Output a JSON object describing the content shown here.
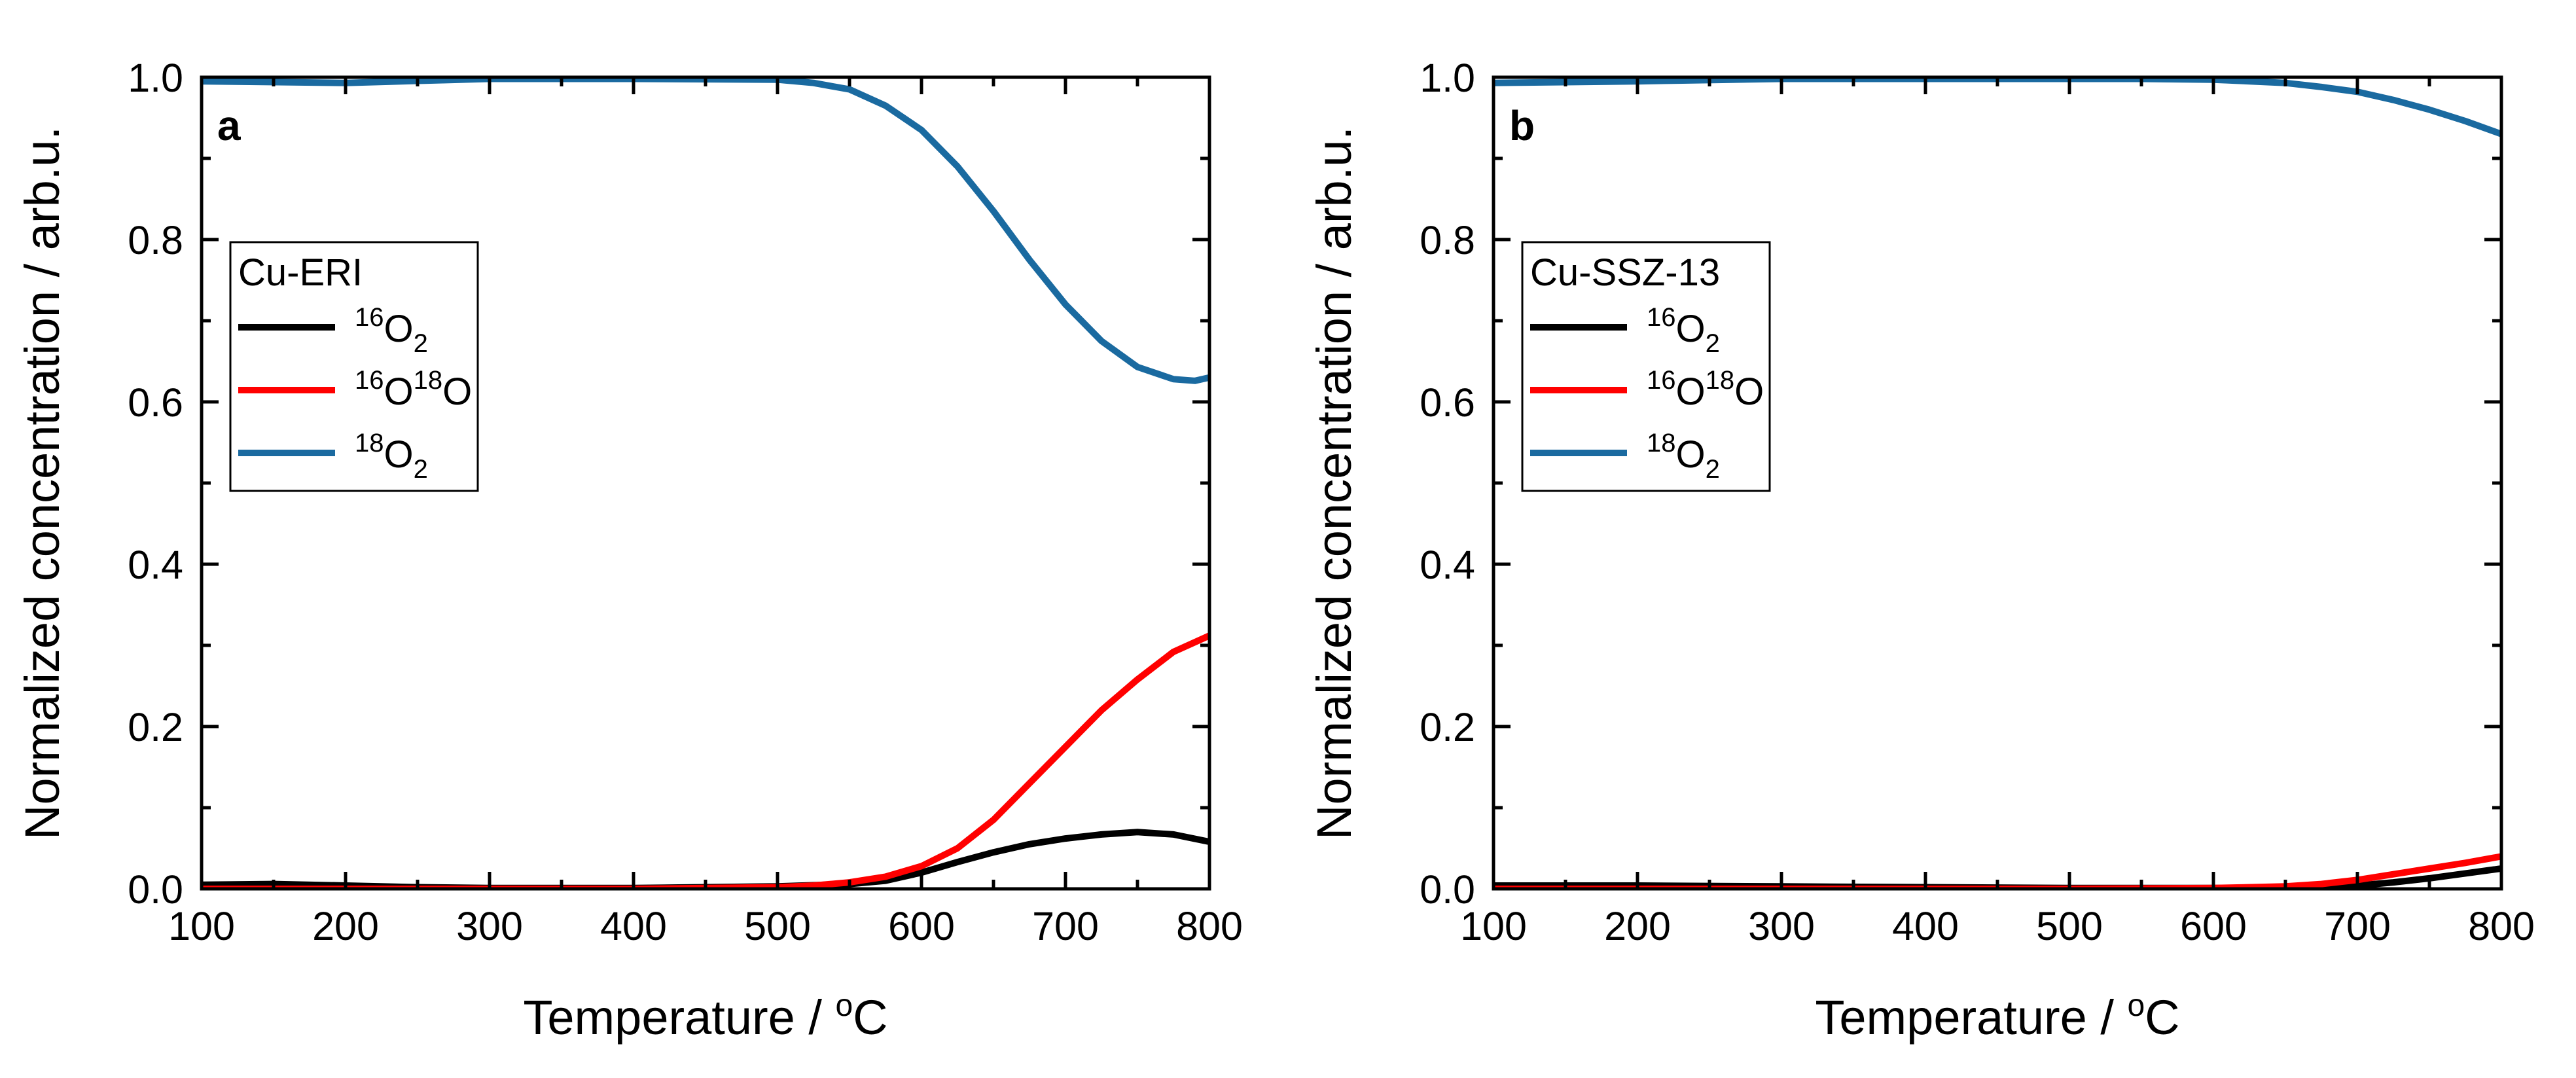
{
  "chart_data": [
    {
      "type": "line",
      "panel_label": "a",
      "xlabel": "Temperature / °C",
      "xlabel_parts": [
        "Temperature / ",
        "o",
        "C"
      ],
      "ylabel": "Normalized concentration / arb.u.",
      "xlim": [
        100,
        800
      ],
      "ylim": [
        0,
        1.0
      ],
      "xticks": [
        "100",
        "200",
        "300",
        "400",
        "500",
        "600",
        "700",
        "800"
      ],
      "yticks": [
        "0.0",
        "0.2",
        "0.4",
        "0.6",
        "0.8",
        "1.0"
      ],
      "legend": {
        "title": "Cu-ERI",
        "placement": "upper-left",
        "entries": [
          {
            "sup": "16",
            "base": "O",
            "sub": "2",
            "sup2": "",
            "tail": ""
          },
          {
            "sup": "16",
            "base": "O",
            "sub": "",
            "sup2": "18",
            "tail": "O"
          },
          {
            "sup": "18",
            "base": "O",
            "sub": "2",
            "sup2": "",
            "tail": ""
          }
        ]
      },
      "series": [
        {
          "name": "16O2",
          "color": "#000000",
          "x": [
            100,
            150,
            200,
            250,
            300,
            350,
            400,
            450,
            500,
            550,
            575,
            600,
            625,
            650,
            675,
            700,
            725,
            750,
            775,
            800
          ],
          "y": [
            0.005,
            0.006,
            0.004,
            0.002,
            0.001,
            0.001,
            0.001,
            0.002,
            0.003,
            0.006,
            0.01,
            0.02,
            0.033,
            0.045,
            0.055,
            0.062,
            0.067,
            0.07,
            0.067,
            0.058
          ]
        },
        {
          "name": "16O18O",
          "color": "#ff0000",
          "x": [
            100,
            200,
            300,
            400,
            500,
            525,
            550,
            575,
            600,
            625,
            650,
            675,
            700,
            725,
            750,
            775,
            800
          ],
          "y": [
            0.0,
            0.0,
            0.0,
            0.0,
            0.002,
            0.004,
            0.008,
            0.015,
            0.028,
            0.05,
            0.085,
            0.13,
            0.175,
            0.22,
            0.258,
            0.292,
            0.312
          ]
        },
        {
          "name": "18O2",
          "color": "#1a6aa0",
          "x": [
            100,
            200,
            300,
            400,
            500,
            525,
            550,
            575,
            600,
            625,
            650,
            675,
            700,
            725,
            750,
            775,
            790,
            800
          ],
          "y": [
            0.995,
            0.993,
            0.998,
            0.998,
            0.997,
            0.993,
            0.985,
            0.965,
            0.935,
            0.89,
            0.835,
            0.775,
            0.72,
            0.675,
            0.643,
            0.628,
            0.626,
            0.63
          ]
        }
      ]
    },
    {
      "type": "line",
      "panel_label": "b",
      "xlabel": "Temperature / °C",
      "xlabel_parts": [
        "Temperature / ",
        "o",
        "C"
      ],
      "ylabel": "Normalized concentration / arb.u.",
      "xlim": [
        100,
        800
      ],
      "ylim": [
        0,
        1.0
      ],
      "xticks": [
        "100",
        "200",
        "300",
        "400",
        "500",
        "600",
        "700",
        "800"
      ],
      "yticks": [
        "0.0",
        "0.2",
        "0.4",
        "0.6",
        "0.8",
        "1.0"
      ],
      "legend": {
        "title": "Cu-SSZ-13",
        "placement": "upper-left",
        "entries": [
          {
            "sup": "16",
            "base": "O",
            "sub": "2",
            "sup2": "",
            "tail": ""
          },
          {
            "sup": "16",
            "base": "O",
            "sub": "",
            "sup2": "18",
            "tail": "O"
          },
          {
            "sup": "18",
            "base": "O",
            "sub": "2",
            "sup2": "",
            "tail": ""
          }
        ]
      },
      "series": [
        {
          "name": "16O2",
          "color": "#000000",
          "x": [
            100,
            200,
            300,
            400,
            500,
            600,
            650,
            700,
            725,
            750,
            775,
            800
          ],
          "y": [
            0.004,
            0.004,
            0.003,
            0.002,
            0.001,
            0.001,
            0.001,
            0.004,
            0.008,
            0.013,
            0.019,
            0.025
          ]
        },
        {
          "name": "16O18O",
          "color": "#ff0000",
          "x": [
            100,
            200,
            300,
            400,
            500,
            600,
            650,
            675,
            700,
            725,
            750,
            775,
            800
          ],
          "y": [
            0.0,
            0.0,
            0.0,
            0.0,
            0.0,
            0.001,
            0.003,
            0.006,
            0.011,
            0.018,
            0.025,
            0.032,
            0.04
          ]
        },
        {
          "name": "18O2",
          "color": "#1a6aa0",
          "x": [
            100,
            200,
            300,
            400,
            500,
            550,
            600,
            650,
            675,
            700,
            725,
            750,
            775,
            800
          ],
          "y": [
            0.993,
            0.995,
            0.998,
            0.998,
            0.998,
            0.998,
            0.997,
            0.993,
            0.988,
            0.982,
            0.972,
            0.96,
            0.946,
            0.93
          ]
        }
      ]
    }
  ]
}
